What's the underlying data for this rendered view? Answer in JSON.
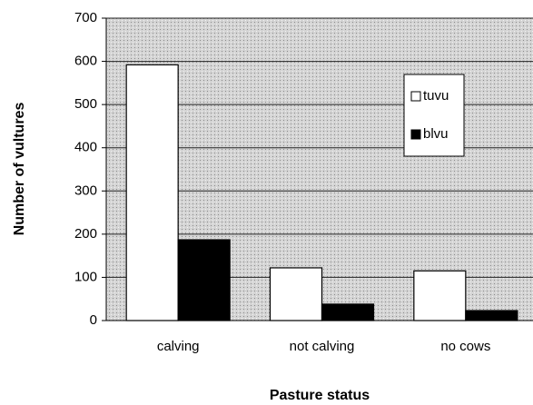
{
  "chart_data": {
    "type": "bar",
    "categories": [
      "calving",
      "not calving",
      "no cows"
    ],
    "series": [
      {
        "name": "tuvu",
        "color": "#ffffff",
        "values": [
          592,
          122,
          115
        ]
      },
      {
        "name": "blvu",
        "color": "#000000",
        "values": [
          187,
          38,
          23
        ]
      }
    ],
    "ylim": [
      0,
      700
    ],
    "yticks": [
      0,
      100,
      200,
      300,
      400,
      500,
      600,
      700
    ],
    "grid": true,
    "legend": "upper right",
    "xlabel": "Pasture status",
    "ylabel": "Number of vultures"
  }
}
